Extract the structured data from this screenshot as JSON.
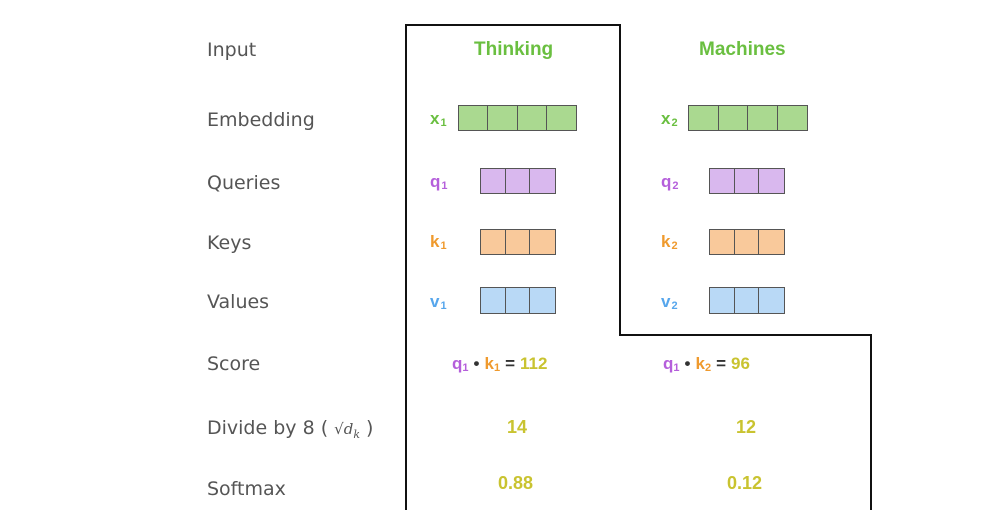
{
  "row_labels": {
    "input": "Input",
    "embedding": "Embedding",
    "queries": "Queries",
    "keys": "Keys",
    "values": "Values",
    "score": "Score",
    "divide_prefix": "Divide by 8 (",
    "divide_sqrt": "√d",
    "divide_sqrt_sub": "k",
    "divide_suffix": ")",
    "softmax": "Softmax"
  },
  "words": [
    "Thinking",
    "Machines"
  ],
  "vectors": {
    "x1": {
      "letter": "x",
      "index": "1",
      "cells": 4,
      "color": "#aad990"
    },
    "x2": {
      "letter": "x",
      "index": "2",
      "cells": 4,
      "color": "#aad990"
    },
    "q1": {
      "letter": "q",
      "index": "1",
      "cells": 3,
      "color": "#d9b8ee"
    },
    "q2": {
      "letter": "q",
      "index": "2",
      "cells": 3,
      "color": "#d9b8ee"
    },
    "k1": {
      "letter": "k",
      "index": "1",
      "cells": 3,
      "color": "#f9c99b"
    },
    "k2": {
      "letter": "k",
      "index": "2",
      "cells": 3,
      "color": "#f9c99b"
    },
    "v1": {
      "letter": "v",
      "index": "1",
      "cells": 3,
      "color": "#b9d9f6"
    },
    "v2": {
      "letter": "v",
      "index": "2",
      "cells": 3,
      "color": "#b9d9f6"
    }
  },
  "scores": [
    {
      "q": "q",
      "q_idx": "1",
      "dot": "•",
      "k": "k",
      "k_idx": "1",
      "eq": "=",
      "value": "112"
    },
    {
      "q": "q",
      "q_idx": "1",
      "dot": "•",
      "k": "k",
      "k_idx": "2",
      "eq": "=",
      "value": "96"
    }
  ],
  "divided": [
    "14",
    "12"
  ],
  "softmax": [
    "0.88",
    "0.12"
  ],
  "colors": {
    "embedding": "#6abf40",
    "query": "#b55fdb",
    "key": "#ef9a2e",
    "value": "#56a6ec",
    "result": "#c9c330"
  }
}
